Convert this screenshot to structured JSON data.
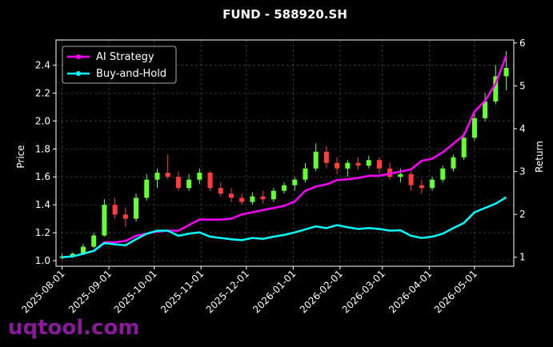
{
  "chart_data": {
    "type": "candlestick",
    "title": "FUND - 588920.SH",
    "ylabel": "Price",
    "y2label": "Return",
    "watermark": "uqtool.com",
    "xlim": [
      "2025-07-28",
      "2026-05-27"
    ],
    "xticks": [
      "2025-08-01",
      "2025-09-01",
      "2025-10-01",
      "2025-11-01",
      "2025-12-01",
      "2026-01-01",
      "2026-02-01",
      "2026-03-01",
      "2026-04-01",
      "2026-05-01"
    ],
    "ylim": [
      0.96,
      2.58
    ],
    "yticks": [
      {
        "value": 1.0,
        "label": "1.0"
      },
      1.2,
      1.4,
      1.6,
      1.8,
      {
        "value": 2.0,
        "label": "2.0"
      },
      2.2,
      2.4
    ],
    "y2lim": [
      0.79,
      6.07
    ],
    "y2ticks": [
      1,
      2,
      3,
      4,
      5,
      6
    ],
    "grid": true,
    "legend": "upper left",
    "up_color": "#66ff33",
    "down_color": "#ff3b3b",
    "x": [
      "2025-08-01",
      "2025-08-08",
      "2025-08-15",
      "2025-08-22",
      "2025-08-29",
      "2025-09-05",
      "2025-09-12",
      "2025-09-19",
      "2025-09-26",
      "2025-10-03",
      "2025-10-10",
      "2025-10-17",
      "2025-10-24",
      "2025-10-31",
      "2025-11-07",
      "2025-11-14",
      "2025-11-21",
      "2025-11-28",
      "2025-12-05",
      "2025-12-12",
      "2025-12-19",
      "2025-12-26",
      "2026-01-02",
      "2026-01-09",
      "2026-01-16",
      "2026-01-23",
      "2026-01-30",
      "2026-02-06",
      "2026-02-13",
      "2026-02-20",
      "2026-02-27",
      "2026-03-06",
      "2026-03-13",
      "2026-03-20",
      "2026-03-27",
      "2026-04-03",
      "2026-04-10",
      "2026-04-17",
      "2026-04-24",
      "2026-05-01",
      "2026-05-08",
      "2026-05-15",
      "2026-05-22"
    ],
    "open": [
      1.02,
      1.03,
      1.05,
      1.1,
      1.18,
      1.4,
      1.33,
      1.3,
      1.45,
      1.58,
      1.63,
      1.6,
      1.52,
      1.58,
      1.63,
      1.52,
      1.48,
      1.45,
      1.42,
      1.46,
      1.44,
      1.5,
      1.54,
      1.58,
      1.66,
      1.78,
      1.7,
      1.66,
      1.7,
      1.68,
      1.72,
      1.66,
      1.6,
      1.62,
      1.54,
      1.52,
      1.58,
      1.66,
      1.74,
      1.88,
      2.02,
      2.14,
      2.32
    ],
    "high": [
      1.05,
      1.06,
      1.12,
      1.2,
      1.44,
      1.45,
      1.38,
      1.48,
      1.62,
      1.66,
      1.76,
      1.64,
      1.62,
      1.66,
      1.64,
      1.56,
      1.52,
      1.48,
      1.49,
      1.5,
      1.52,
      1.56,
      1.6,
      1.7,
      1.84,
      1.82,
      1.74,
      1.72,
      1.74,
      1.75,
      1.74,
      1.7,
      1.66,
      1.64,
      1.58,
      1.6,
      1.68,
      1.76,
      1.92,
      2.06,
      2.2,
      2.4,
      2.5
    ],
    "low": [
      1.01,
      1.02,
      1.04,
      1.09,
      1.17,
      1.3,
      1.24,
      1.28,
      1.43,
      1.52,
      1.58,
      1.5,
      1.5,
      1.55,
      1.5,
      1.46,
      1.42,
      1.4,
      1.4,
      1.41,
      1.42,
      1.48,
      1.5,
      1.56,
      1.64,
      1.66,
      1.62,
      1.6,
      1.65,
      1.66,
      1.62,
      1.58,
      1.56,
      1.5,
      1.48,
      1.5,
      1.56,
      1.64,
      1.72,
      1.86,
      2.0,
      2.12,
      2.22
    ],
    "close": [
      1.03,
      1.05,
      1.1,
      1.18,
      1.4,
      1.33,
      1.3,
      1.45,
      1.58,
      1.63,
      1.6,
      1.52,
      1.58,
      1.63,
      1.52,
      1.48,
      1.45,
      1.42,
      1.46,
      1.44,
      1.5,
      1.54,
      1.58,
      1.66,
      1.78,
      1.7,
      1.66,
      1.7,
      1.68,
      1.72,
      1.66,
      1.6,
      1.62,
      1.54,
      1.52,
      1.58,
      1.66,
      1.74,
      1.88,
      2.02,
      2.14,
      2.32,
      2.38
    ],
    "series": [
      {
        "name": "AI Strategy",
        "color": "#ff00ff",
        "axis": "y2",
        "values": [
          1.0,
          1.02,
          1.08,
          1.15,
          1.35,
          1.35,
          1.38,
          1.5,
          1.55,
          1.6,
          1.62,
          1.62,
          1.75,
          1.88,
          1.88,
          1.88,
          1.9,
          2.0,
          2.05,
          2.1,
          2.15,
          2.2,
          2.3,
          2.55,
          2.65,
          2.7,
          2.8,
          2.82,
          2.85,
          2.9,
          2.9,
          2.95,
          3.0,
          3.05,
          3.25,
          3.3,
          3.45,
          3.65,
          3.85,
          4.4,
          4.65,
          5.05,
          5.7
        ]
      },
      {
        "name": "Buy-and-Hold",
        "color": "#00ffff",
        "axis": "y2",
        "values": [
          1.0,
          1.02,
          1.08,
          1.15,
          1.33,
          1.3,
          1.28,
          1.42,
          1.55,
          1.62,
          1.62,
          1.5,
          1.55,
          1.58,
          1.48,
          1.45,
          1.42,
          1.4,
          1.45,
          1.43,
          1.48,
          1.52,
          1.58,
          1.65,
          1.72,
          1.68,
          1.75,
          1.7,
          1.66,
          1.68,
          1.66,
          1.62,
          1.63,
          1.5,
          1.45,
          1.48,
          1.55,
          1.68,
          1.8,
          2.05,
          2.15,
          2.25,
          2.4
        ]
      }
    ]
  }
}
